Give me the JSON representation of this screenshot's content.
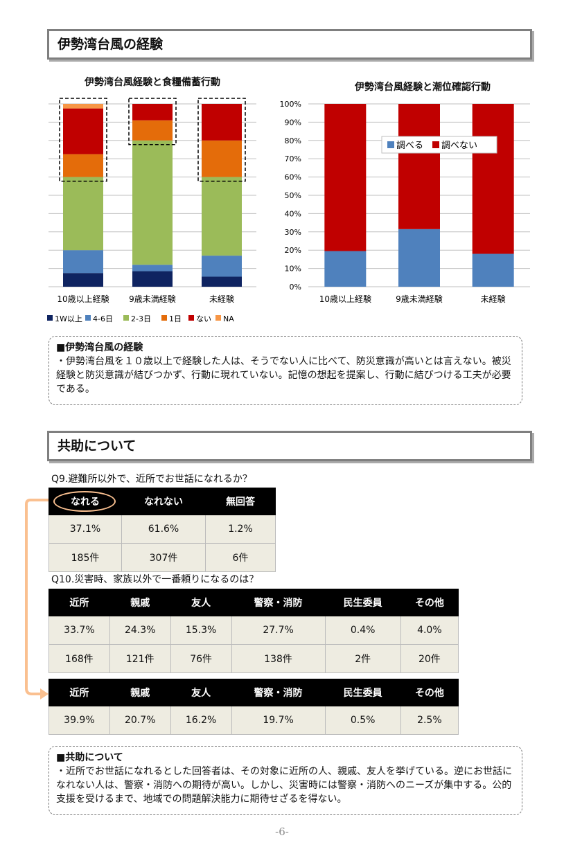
{
  "section1": {
    "title": "伊勢湾台風の経験"
  },
  "chart_data": [
    {
      "type": "bar",
      "stacked": true,
      "title": "伊勢湾台風経験と食糧備蓄行動",
      "categories": [
        "10歳以上経験",
        "9歳未満経験",
        "未経験"
      ],
      "series": [
        {
          "name": "1W以上",
          "color": "#0f2461",
          "values": [
            7.5,
            8.5,
            5.5
          ]
        },
        {
          "name": "4-6日",
          "color": "#4f81bd",
          "values": [
            12.5,
            3.5,
            11.5
          ]
        },
        {
          "name": "2-3日",
          "color": "#9bbb59",
          "values": [
            40,
            68,
            43
          ]
        },
        {
          "name": "1日",
          "color": "#e46c0a",
          "values": [
            12.5,
            11,
            20
          ]
        },
        {
          "name": "ない",
          "color": "#c00000",
          "values": [
            25,
            9,
            20
          ]
        },
        {
          "name": "NA",
          "color": "#f79646",
          "values": [
            2.5,
            0,
            0
          ]
        }
      ],
      "ylim": [
        0,
        100
      ],
      "legend": "bottom",
      "grid": true
    },
    {
      "type": "bar",
      "stacked": true,
      "title": "伊勢湾台風経験と潮位確認行動",
      "categories": [
        "10歳以上経験",
        "9歳未満経験",
        "未経験"
      ],
      "series": [
        {
          "name": "調べる",
          "color": "#4f81bd",
          "values": [
            19.5,
            31.5,
            18
          ]
        },
        {
          "name": "調べない",
          "color": "#c00000",
          "values": [
            80.5,
            68.5,
            82
          ]
        }
      ],
      "ylim": [
        0,
        100
      ],
      "yticks": [
        "0%",
        "10%",
        "20%",
        "30%",
        "40%",
        "50%",
        "60%",
        "70%",
        "80%",
        "90%",
        "100%"
      ],
      "legend": "inside-top",
      "grid": true
    }
  ],
  "note1": {
    "title": "■伊勢湾台風の経験",
    "body": "・伊勢湾台風を１０歳以上で経験した人は、そうでない人に比べて、防災意識が高いとは言えない。被災経験と防災意識が結びつかず、行動に現れていない。記憶の想起を提案し、行動に結びつける工夫が必要である。"
  },
  "section2": {
    "title": "共助について"
  },
  "q9": {
    "question": "Q9.避難所以外で、近所でお世話になれるか？",
    "headers": [
      "なれる",
      "なれない",
      "無回答"
    ],
    "rows": [
      [
        "37.1%",
        "61.6%",
        "1.2%"
      ],
      [
        "185件",
        "307件",
        "6件"
      ]
    ]
  },
  "q10": {
    "question": "Q10.災害時、家族以外で一番頼りになるのは？",
    "headers": [
      "近所",
      "親戚",
      "友人",
      "警察・消防",
      "民生委員",
      "その他"
    ],
    "rows": [
      [
        "33.7%",
        "24.3%",
        "15.3%",
        "27.7%",
        "0.4%",
        "4.0%"
      ],
      [
        "168件",
        "121件",
        "76件",
        "138件",
        "2件",
        "20件"
      ]
    ]
  },
  "q10b": {
    "headers": [
      "近所",
      "親戚",
      "友人",
      "警察・消防",
      "民生委員",
      "その他"
    ],
    "rows": [
      [
        "39.9%",
        "20.7%",
        "16.2%",
        "19.7%",
        "0.5%",
        "2.5%"
      ]
    ]
  },
  "note2": {
    "title": "■共助について",
    "body": "・近所でお世話になれるとした回答者は、その対象に近所の人、親戚、友人を挙げている。逆にお世話になれない人は、警察・消防への期待が高い。しかし、災害時には警察・消防へのニーズが集中する。公的支援を受けるまで、地域での問題解決能力に期待せざるを得ない。"
  },
  "page_number": "-6-",
  "colors": {
    "arrow": "#fac090",
    "header_bg": "#000000",
    "cell_bg": "#eeece1"
  }
}
